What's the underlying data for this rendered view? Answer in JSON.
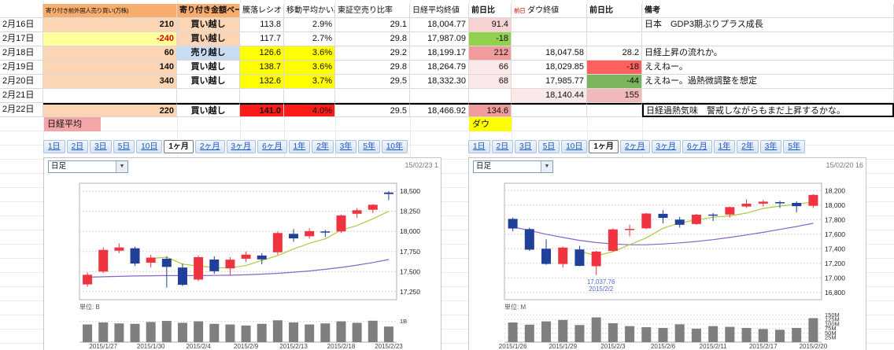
{
  "palette": {
    "up": "#ef3340",
    "down": "#20409a",
    "ma_short": "#b0c740",
    "ma_long": "#8a63c9",
    "volume": "#7f7f7f",
    "annotation": "#4a6bd8",
    "header_orange": "#f6ad6d",
    "cell_orange": "#fcd5b4",
    "highlight_yellow": "#ffff00",
    "pale_yellow": "#ffff9c",
    "sell_blue": "#c9dcf3",
    "alert_red": "#ff1a1a",
    "gain_pink": "#f09c9c",
    "loss_green": "#92d050"
  },
  "spreadsheet": {
    "header": {
      "date": {
        "t": "",
        "cls": ""
      },
      "foreign": {
        "t": "寄り付き前外国人売り買い(万株)",
        "cls": "hOrange hsmall"
      },
      "basis": {
        "t": "寄り付き金額ベース",
        "cls": "hOrange b ac"
      },
      "ratio": {
        "t": "騰落レシオ",
        "cls": ""
      },
      "ma_dev": {
        "t": "移動平均かい離",
        "cls": ""
      },
      "short_ratio": {
        "t": "東証空売り比率",
        "cls": ""
      },
      "nikkei_close": {
        "t": "日経平均終値",
        "cls": ""
      },
      "nikkei_chg": {
        "t": "前日比",
        "cls": "b"
      },
      "dow_close": {
        "parts": [
          {
            "t": "前日",
            "cls": "ct-red hsmall"
          },
          {
            "t": " ダウ終値",
            "cls": ""
          }
        ]
      },
      "dow_chg": {
        "t": "前日比",
        "cls": "b"
      },
      "remark": {
        "t": "備考",
        "cls": "b"
      }
    },
    "rows": [
      {
        "date": "2月16日",
        "cells": [
          [
            "210",
            "bgO b ar"
          ],
          [
            "買い越し",
            "bgO b ac"
          ],
          [
            "113.8",
            "ar"
          ],
          [
            "2.9%",
            "ar"
          ],
          [
            "29.1",
            "ar"
          ],
          [
            "18,004.77",
            "ar"
          ],
          [
            "91.4",
            "bgPP ar"
          ],
          [
            "",
            ""
          ],
          [
            "",
            ""
          ],
          [
            "日本　GDP3期ぶりプラス成長",
            ""
          ]
        ]
      },
      {
        "date": "2月17日",
        "cells": [
          [
            "-240",
            "bgYP b ar ct-red"
          ],
          [
            "買い越し",
            "bgO b ac"
          ],
          [
            "117.7",
            "ar"
          ],
          [
            "2.7%",
            "ar"
          ],
          [
            "29.8",
            "ar"
          ],
          [
            "17,987.09",
            "ar"
          ],
          [
            "-18",
            "bgG ar"
          ],
          [
            "",
            ""
          ],
          [
            "",
            ""
          ],
          [
            "",
            ""
          ]
        ]
      },
      {
        "date": "2月18日",
        "cells": [
          [
            "60",
            "bgO b ar"
          ],
          [
            "売り越し",
            "bgB b ac"
          ],
          [
            "126.6",
            "bgY ar"
          ],
          [
            "3.6%",
            "bgY ar"
          ],
          [
            "29.2",
            "ar"
          ],
          [
            "18,199.17",
            "ar"
          ],
          [
            "212",
            "bgPM ar"
          ],
          [
            "18,047.58",
            "ar"
          ],
          [
            "28.2",
            "ar"
          ],
          [
            "日経上昇の流れか。",
            ""
          ]
        ]
      },
      {
        "date": "2月19日",
        "cells": [
          [
            "140",
            "bgO b ar"
          ],
          [
            "買い越し",
            "b ac"
          ],
          [
            "138.7",
            "bgY ar"
          ],
          [
            "3.6%",
            "bgY ar"
          ],
          [
            "29.8",
            "ar"
          ],
          [
            "18,264.79",
            "ar"
          ],
          [
            "66",
            "bgPP2 ar"
          ],
          [
            "18,029.85",
            "ar"
          ],
          [
            "-18",
            "bgRS ar"
          ],
          [
            "ええねー。",
            ""
          ]
        ]
      },
      {
        "date": "2月20日",
        "cells": [
          [
            "340",
            "bgO b ar"
          ],
          [
            "買い越し",
            "b ac"
          ],
          [
            "132.6",
            "bgY ar"
          ],
          [
            "3.7%",
            "bgY ar"
          ],
          [
            "29.5",
            "ar"
          ],
          [
            "18,332.30",
            "ar"
          ],
          [
            "68",
            "bgPP2 ar"
          ],
          [
            "17,985.77",
            "ar"
          ],
          [
            "-44",
            "bgGM ar"
          ],
          [
            "ええねー。過熱微調整を想定",
            ""
          ]
        ]
      },
      {
        "date": "2月21日",
        "cells": [
          [
            "",
            ""
          ],
          [
            "",
            ""
          ],
          [
            "",
            ""
          ],
          [
            "",
            ""
          ],
          [
            "",
            ""
          ],
          [
            "",
            ""
          ],
          [
            "",
            ""
          ],
          [
            "18,140.44",
            "bgPP2 ar"
          ],
          [
            "155",
            "bgPL ar"
          ],
          [
            "",
            ""
          ]
        ]
      },
      {
        "date": "2月22日",
        "cells": [
          [
            "220",
            "bgO b ar bt"
          ],
          [
            "買い越し",
            "b ac bt"
          ],
          [
            "141.0",
            "bgR b ar bt"
          ],
          [
            "4.0%",
            "bgR ar bt"
          ],
          [
            "29.5",
            "ar bt"
          ],
          [
            "18,466.92",
            "ar bt"
          ],
          [
            "134.6",
            "bgPM ar bt"
          ],
          [
            "",
            "bt"
          ],
          [
            "",
            "bt"
          ],
          [
            "日経過熱気味　警戒しながらもまだ上昇するかな。",
            "box"
          ]
        ]
      }
    ],
    "section_labels": {
      "nikkei": "日経平均",
      "dow": "ダウ"
    }
  },
  "left_panel": {
    "tabs": [
      "1日",
      "2日",
      "3日",
      "5日",
      "10日",
      "1ヶ月",
      "2ヶ月",
      "3ヶ月",
      "6ヶ月",
      "1年",
      "2年",
      "3年",
      "5年",
      "10年"
    ],
    "selected_index": 5,
    "selected_tab": "1ヶ月",
    "dropdown_value": "日足",
    "timestamp": "15/02/23 1"
  },
  "right_panel": {
    "tabs": [
      "1日",
      "2日",
      "3日",
      "5日",
      "10日",
      "1ヶ月",
      "2ヶ月",
      "3ヶ月",
      "6ヶ月",
      "1年",
      "2年",
      "3年",
      "5年"
    ],
    "selected_index": 5,
    "selected_tab": "1ヶ月",
    "dropdown_value": "日足",
    "timestamp": "15/02/20 16"
  },
  "chart_data": [
    {
      "type": "candlestick",
      "name": "日経平均",
      "interval": "日足",
      "period": "1ヶ月",
      "y_min": 17150,
      "y_max": 18600,
      "y_ticks": [
        {
          "v": 18500,
          "t": "18,500"
        },
        {
          "v": 18250,
          "t": "18,250"
        },
        {
          "v": 18000,
          "t": "18,000"
        },
        {
          "v": 17750,
          "t": "17,750"
        },
        {
          "v": 17500,
          "t": "17,500"
        },
        {
          "v": 17250,
          "t": "17,250"
        }
      ],
      "dates": [
        "2015/1/26",
        "2015/1/27",
        "2015/1/28",
        "2015/1/29",
        "2015/1/30",
        "2015/2/2",
        "2015/2/3",
        "2015/2/4",
        "2015/2/5",
        "2015/2/6",
        "2015/2/9",
        "2015/2/10",
        "2015/2/12",
        "2015/2/13",
        "2015/2/16",
        "2015/2/17",
        "2015/2/18",
        "2015/2/19",
        "2015/2/20",
        "2015/2/23"
      ],
      "candles": [
        [
          17340,
          17490,
          17310,
          17460
        ],
        [
          17500,
          17800,
          17480,
          17770
        ],
        [
          17760,
          17850,
          17730,
          17800
        ],
        [
          17790,
          17810,
          17570,
          17600
        ],
        [
          17610,
          17710,
          17550,
          17674
        ],
        [
          17660,
          17690,
          17300,
          17558
        ],
        [
          17550,
          17600,
          17320,
          17335
        ],
        [
          17400,
          17700,
          17380,
          17679
        ],
        [
          17650,
          17690,
          17470,
          17504
        ],
        [
          17540,
          17680,
          17460,
          17648
        ],
        [
          17660,
          17750,
          17620,
          17711
        ],
        [
          17700,
          17730,
          17590,
          17652
        ],
        [
          17740,
          18000,
          17710,
          17980
        ],
        [
          17970,
          18030,
          17870,
          17913
        ],
        [
          17940,
          18040,
          17910,
          18004
        ],
        [
          18000,
          18020,
          17930,
          17987
        ],
        [
          18000,
          18210,
          17980,
          18199
        ],
        [
          18220,
          18290,
          18170,
          18264
        ],
        [
          18270,
          18340,
          18230,
          18332
        ],
        [
          18485,
          18500,
          18390,
          18466
        ]
      ],
      "ma_short": [
        null,
        null,
        null,
        null,
        17661,
        17680,
        17593,
        17569,
        17550,
        17545,
        17575,
        17639,
        17699,
        17781,
        17852,
        17907,
        18017,
        18073,
        18157,
        18250
      ],
      "ma_long": [
        17430,
        17435,
        17440,
        17445,
        17448,
        17450,
        17450,
        17450,
        17452,
        17455,
        17460,
        17468,
        17478,
        17492,
        17508,
        17528,
        17552,
        17580,
        17612,
        17650
      ],
      "volumes": [
        0.85,
        0.95,
        0.9,
        0.88,
        0.97,
        1.02,
        0.93,
        1.0,
        0.88,
        0.85,
        0.8,
        0.88,
        1.05,
        0.95,
        0.85,
        0.9,
        1.0,
        0.93,
        1.03,
        0.75
      ],
      "vol_unit": "単位: B",
      "vol_max": 1.4,
      "vol_ticks": [
        {
          "v": 1,
          "t": "1B"
        }
      ],
      "x_labels": [
        {
          "i": 1,
          "t": "2015/1/27"
        },
        {
          "i": 4,
          "t": "2015/1/30"
        },
        {
          "i": 7,
          "t": "2015/2/4"
        },
        {
          "i": 10,
          "t": "2015/2/9"
        },
        {
          "i": 13,
          "t": "2015/2/13"
        },
        {
          "i": 16,
          "t": "2015/2/18"
        },
        {
          "i": 19,
          "t": "2015/2/23"
        }
      ]
    },
    {
      "type": "candlestick",
      "name": "ダウ",
      "interval": "日足",
      "period": "1ヶ月",
      "y_min": 16700,
      "y_max": 18300,
      "y_ticks": [
        {
          "v": 18200,
          "t": "18,200"
        },
        {
          "v": 18000,
          "t": "18,000"
        },
        {
          "v": 17800,
          "t": "17,800"
        },
        {
          "v": 17600,
          "t": "17,600"
        },
        {
          "v": 17400,
          "t": "17,400"
        },
        {
          "v": 17200,
          "t": "17,200"
        },
        {
          "v": 17000,
          "t": "17,000"
        },
        {
          "v": 16800,
          "t": "16,800"
        }
      ],
      "dates": [
        "2015/1/26",
        "2015/1/27",
        "2015/1/28",
        "2015/1/29",
        "2015/1/30",
        "2015/2/2",
        "2015/2/3",
        "2015/2/4",
        "2015/2/5",
        "2015/2/6",
        "2015/2/9",
        "2015/2/10",
        "2015/2/11",
        "2015/2/12",
        "2015/2/13",
        "2015/2/17",
        "2015/2/18",
        "2015/2/19",
        "2015/2/20"
      ],
      "candles": [
        [
          17810,
          17830,
          17640,
          17678
        ],
        [
          17670,
          17690,
          17370,
          17387
        ],
        [
          17400,
          17530,
          17180,
          17191
        ],
        [
          17190,
          17430,
          17140,
          17416
        ],
        [
          17390,
          17440,
          17160,
          17164
        ],
        [
          17160,
          17370,
          17037,
          17361
        ],
        [
          17370,
          17680,
          17360,
          17666
        ],
        [
          17660,
          17730,
          17570,
          17673
        ],
        [
          17680,
          17890,
          17670,
          17884
        ],
        [
          17880,
          17930,
          17750,
          17824
        ],
        [
          17800,
          17840,
          17690,
          17729
        ],
        [
          17740,
          17880,
          17730,
          17868
        ],
        [
          17870,
          17890,
          17780,
          17862
        ],
        [
          17870,
          17980,
          17830,
          17972
        ],
        [
          17980,
          18080,
          17960,
          18019
        ],
        [
          18020,
          18070,
          17980,
          18047
        ],
        [
          18040,
          18060,
          17960,
          18029
        ],
        [
          18030,
          18050,
          17900,
          17985
        ],
        [
          17990,
          18150,
          17960,
          18140
        ]
      ],
      "ma_short": [
        null,
        null,
        null,
        null,
        17367,
        17304,
        17360,
        17456,
        17550,
        17682,
        17755,
        17796,
        17833,
        17851,
        17890,
        17954,
        17986,
        18010,
        18044
      ],
      "ma_long": [
        17700,
        17650,
        17600,
        17555,
        17515,
        17485,
        17465,
        17455,
        17455,
        17465,
        17480,
        17500,
        17525,
        17555,
        17590,
        17625,
        17665,
        17705,
        17750
      ],
      "volumes": [
        108,
        96,
        114,
        122,
        94,
        136,
        104,
        88,
        82,
        78,
        98,
        74,
        88,
        84,
        78,
        72,
        68,
        78,
        132
      ],
      "vol_unit": "単位: M",
      "vol_max": 160,
      "vol_ticks": [
        {
          "v": 150,
          "t": "150M"
        },
        {
          "v": 125,
          "t": "125M"
        },
        {
          "v": 100,
          "t": "100M"
        },
        {
          "v": 75,
          "t": "75M"
        },
        {
          "v": 50,
          "t": "50M"
        },
        {
          "v": 25,
          "t": "25M"
        }
      ],
      "x_labels": [
        {
          "i": 0,
          "t": "2015/1/26"
        },
        {
          "i": 3,
          "t": "2015/1/29"
        },
        {
          "i": 6,
          "t": "2015/2/3"
        },
        {
          "i": 9,
          "t": "2015/2/6"
        },
        {
          "i": 12,
          "t": "2015/2/11"
        },
        {
          "i": 15,
          "t": "2015/2/17"
        },
        {
          "i": 18,
          "t": "2015/2/20"
        }
      ],
      "annotation": {
        "i": 5,
        "lines": [
          "17,037.76",
          "2015/2/2"
        ]
      }
    }
  ]
}
